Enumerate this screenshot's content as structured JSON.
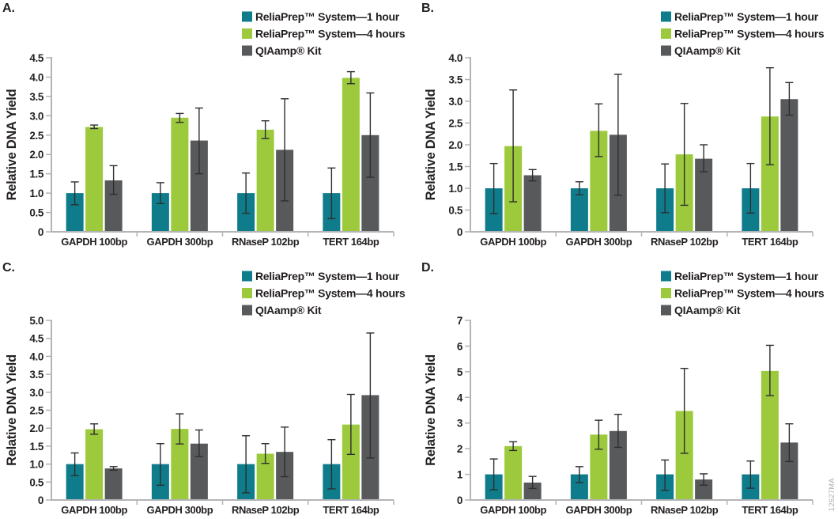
{
  "watermark": "12627MA",
  "colors": {
    "teal": "#0E7C8B",
    "green": "#9CCA3C",
    "gray": "#58595B",
    "axis": "#B2B4B6",
    "error_bar": "#2E2E30"
  },
  "chart_data": [
    {
      "type": "bar",
      "panel_label": "A.",
      "title": "",
      "xlabel": "",
      "ylabel": "Relative DNA Yield",
      "ylim": [
        0,
        4.5
      ],
      "ytick_step": 0.5,
      "grid": false,
      "legend_position": "top-right",
      "categories": [
        "GAPDH 100bp",
        "GAPDH 300bp",
        "RNaseP 102bp",
        "TERT 164bp"
      ],
      "series": [
        {
          "name": "ReliaPrep™ System—1 hour",
          "color": "#0E7C8B",
          "values": [
            1.0,
            1.0,
            1.0,
            1.0
          ],
          "err_low": [
            0.7,
            0.73,
            0.48,
            0.34
          ],
          "err_high": [
            1.29,
            1.27,
            1.52,
            1.65
          ]
        },
        {
          "name": "ReliaPrep™ System—4 hours",
          "color": "#9CCA3C",
          "values": [
            2.71,
            2.95,
            2.64,
            3.98
          ],
          "err_low": [
            2.67,
            2.83,
            2.41,
            3.83
          ],
          "err_high": [
            2.76,
            3.06,
            2.87,
            4.14
          ]
        },
        {
          "name": "QIAamp® Kit",
          "color": "#58595B",
          "values": [
            1.33,
            2.36,
            2.12,
            2.5
          ],
          "err_low": [
            0.97,
            1.5,
            0.8,
            1.41
          ],
          "err_high": [
            1.71,
            3.2,
            3.44,
            3.59
          ]
        }
      ]
    },
    {
      "type": "bar",
      "panel_label": "B.",
      "title": "",
      "xlabel": "",
      "ylabel": "Relative DNA Yield",
      "ylim": [
        0,
        4.0
      ],
      "ytick_step": 0.5,
      "grid": false,
      "legend_position": "top-right",
      "categories": [
        "GAPDH 100bp",
        "GAPDH 300bp",
        "RNaseP 102bp",
        "TERT 164bp"
      ],
      "series": [
        {
          "name": "ReliaPrep™ System—1 hour",
          "color": "#0E7C8B",
          "values": [
            1.0,
            1.0,
            1.0,
            1.0
          ],
          "err_low": [
            0.42,
            0.85,
            0.44,
            0.43
          ],
          "err_high": [
            1.57,
            1.15,
            1.56,
            1.57
          ]
        },
        {
          "name": "ReliaPrep™ System—4 hours",
          "color": "#9CCA3C",
          "values": [
            1.97,
            2.32,
            1.78,
            2.65
          ],
          "err_low": [
            0.69,
            1.73,
            0.61,
            1.54
          ],
          "err_high": [
            3.26,
            2.94,
            2.95,
            3.77
          ]
        },
        {
          "name": "QIAamp® Kit",
          "color": "#58595B",
          "values": [
            1.3,
            2.23,
            1.68,
            3.05
          ],
          "err_low": [
            1.17,
            0.84,
            1.38,
            2.68
          ],
          "err_high": [
            1.43,
            3.62,
            2.0,
            3.43
          ]
        }
      ]
    },
    {
      "type": "bar",
      "panel_label": "C.",
      "title": "",
      "xlabel": "",
      "ylabel": "Relative DNA Yield",
      "ylim": [
        0,
        5.0
      ],
      "ytick_step": 0.5,
      "grid": false,
      "legend_position": "top-right",
      "categories": [
        "GAPDH 100bp",
        "GAPDH 300bp",
        "RNaseP 102bp",
        "TERT 164bp"
      ],
      "series": [
        {
          "name": "ReliaPrep™ System—1 hour",
          "color": "#0E7C8B",
          "values": [
            1.0,
            1.0,
            1.0,
            1.0
          ],
          "err_low": [
            0.68,
            0.41,
            0.2,
            0.31
          ],
          "err_high": [
            1.31,
            1.57,
            1.79,
            1.68
          ]
        },
        {
          "name": "ReliaPrep™ System—4 hours",
          "color": "#9CCA3C",
          "values": [
            1.97,
            1.98,
            1.29,
            2.1
          ],
          "err_low": [
            1.83,
            1.56,
            1.02,
            1.27
          ],
          "err_high": [
            2.12,
            2.4,
            1.57,
            2.94
          ]
        },
        {
          "name": "QIAamp® Kit",
          "color": "#58595B",
          "values": [
            0.88,
            1.57,
            1.34,
            2.92
          ],
          "err_low": [
            0.83,
            1.21,
            0.65,
            1.17
          ],
          "err_high": [
            0.93,
            1.95,
            2.03,
            4.65
          ]
        }
      ]
    },
    {
      "type": "bar",
      "panel_label": "D.",
      "title": "",
      "xlabel": "",
      "ylabel": "Relative DNA Yield",
      "ylim": [
        0,
        7
      ],
      "ytick_step": 1,
      "grid": false,
      "legend_position": "top-right",
      "categories": [
        "GAPDH 100bp",
        "GAPDH 300bp",
        "RNaseP 102bp",
        "TERT 164bp"
      ],
      "series": [
        {
          "name": "ReliaPrep™ System—1 hour",
          "color": "#0E7C8B",
          "values": [
            1.0,
            1.0,
            1.0,
            1.0
          ],
          "err_low": [
            0.4,
            0.68,
            0.38,
            0.46
          ],
          "err_high": [
            1.6,
            1.3,
            1.56,
            1.52
          ]
        },
        {
          "name": "ReliaPrep™ System—4 hours",
          "color": "#9CCA3C",
          "values": [
            2.1,
            2.55,
            3.47,
            5.03
          ],
          "err_low": [
            1.93,
            1.98,
            1.82,
            4.07
          ],
          "err_high": [
            2.27,
            3.11,
            5.13,
            6.03
          ]
        },
        {
          "name": "QIAamp® Kit",
          "color": "#58595B",
          "values": [
            0.68,
            2.69,
            0.8,
            2.24
          ],
          "err_low": [
            0.45,
            2.05,
            0.58,
            1.5
          ],
          "err_high": [
            0.92,
            3.34,
            1.02,
            2.97
          ]
        }
      ]
    }
  ]
}
